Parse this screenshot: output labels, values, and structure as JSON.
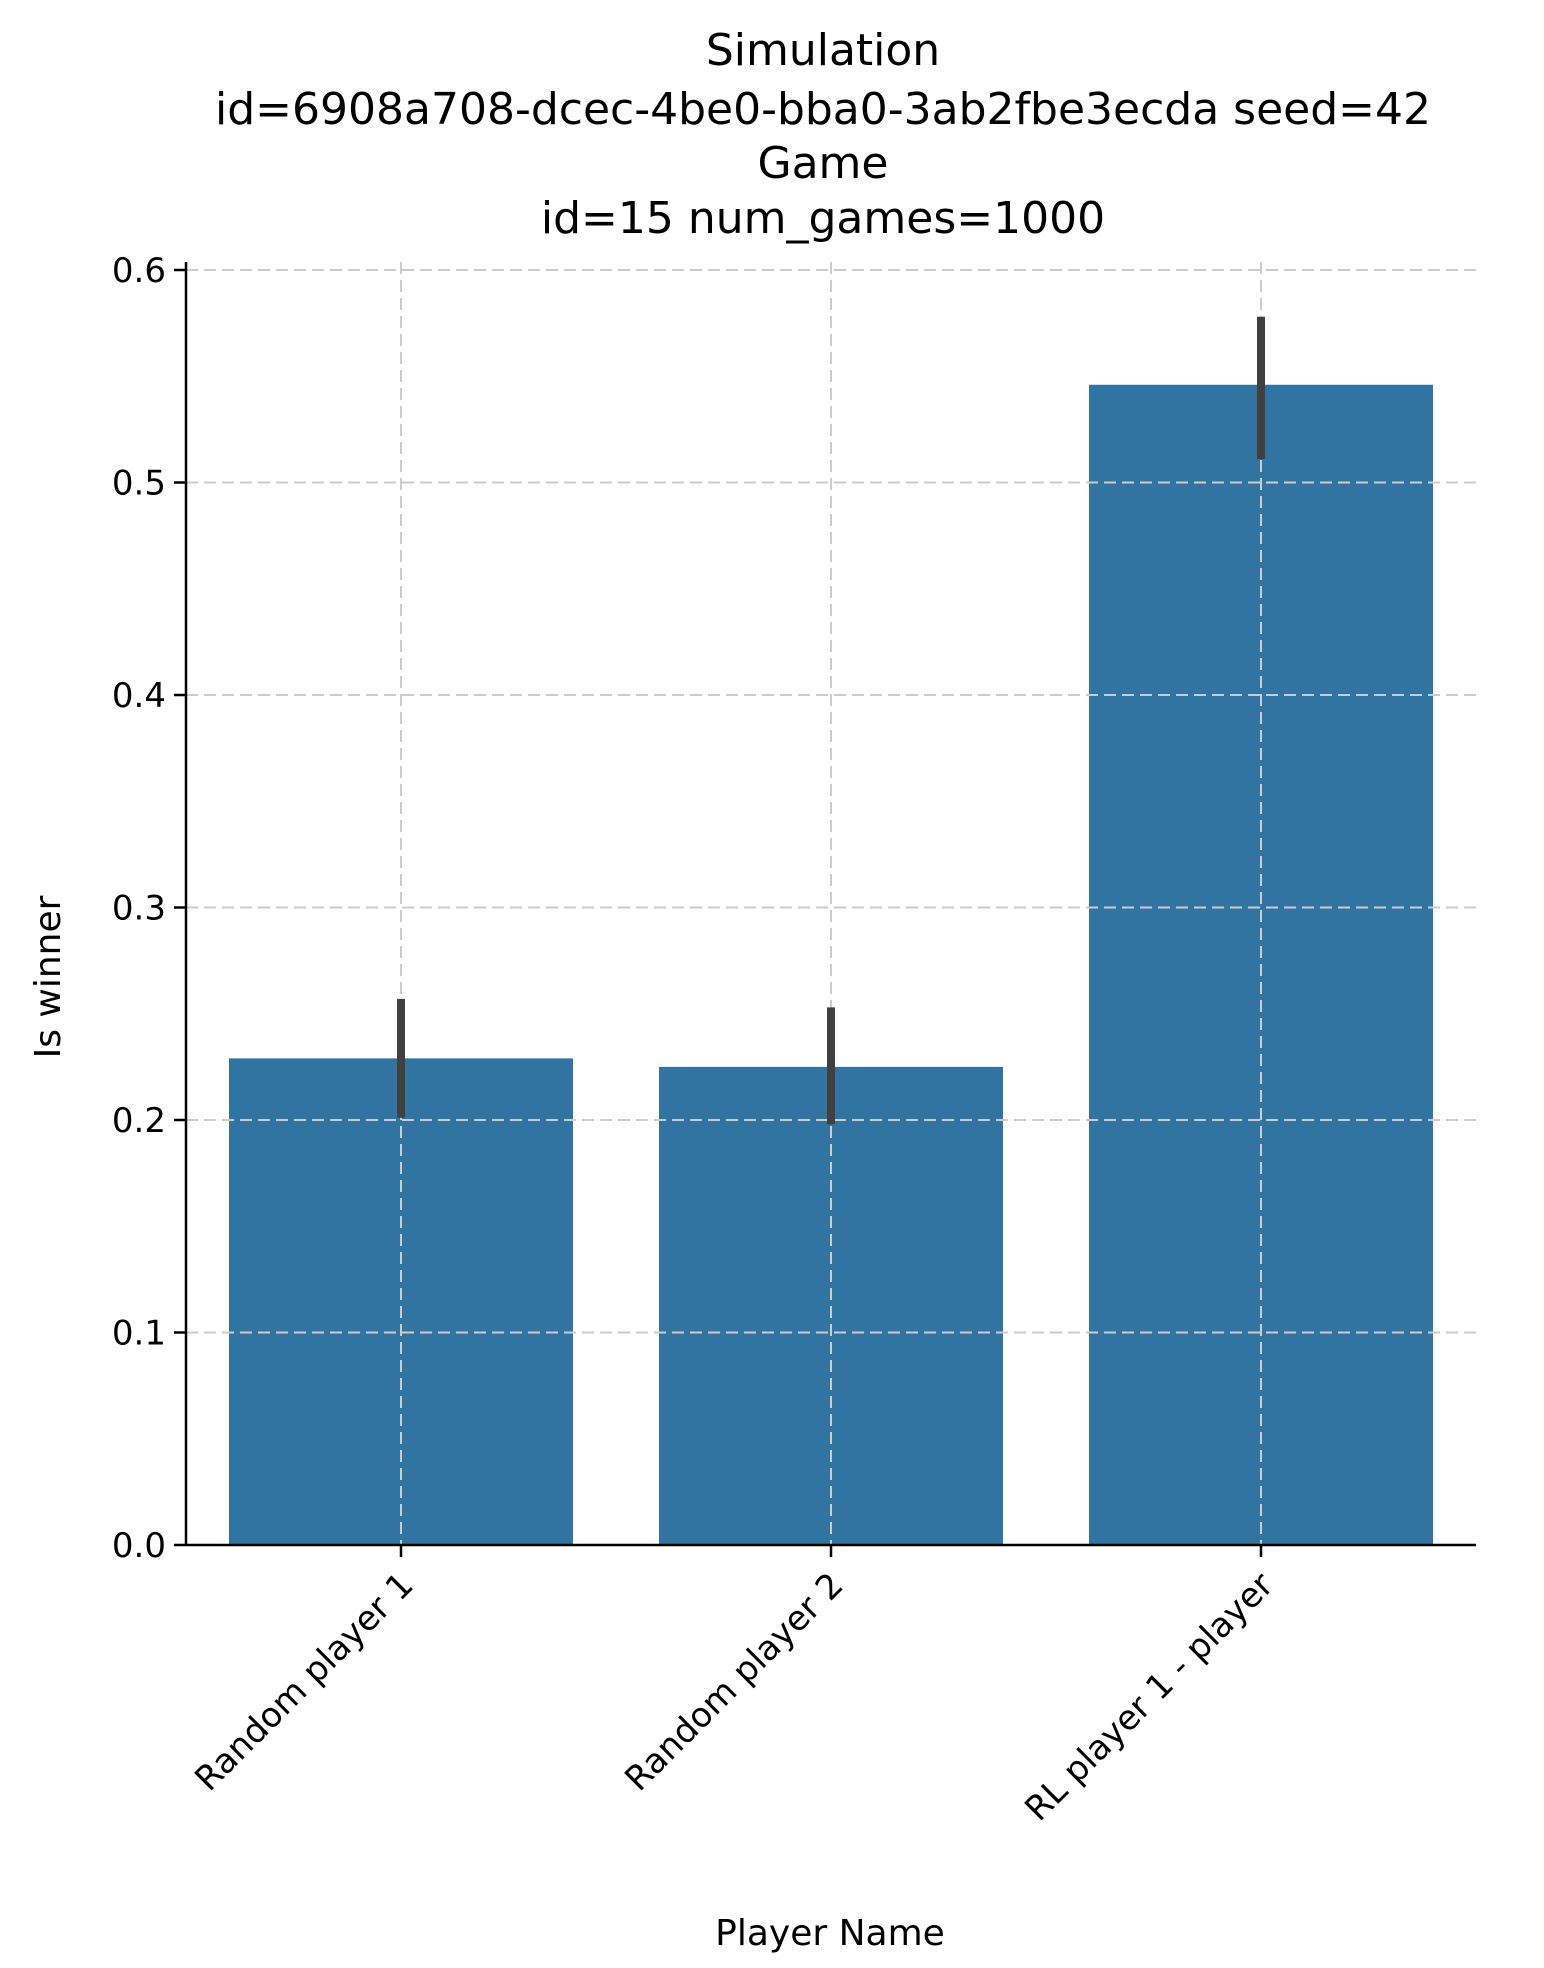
{
  "chart_data": {
    "type": "bar",
    "title_lines": [
      "Simulation",
      "id=6908a708-dcec-4be0-bba0-3ab2fbe3ecda seed=42",
      "Game",
      "id=15 num_games=1000"
    ],
    "xlabel": "Player Name",
    "ylabel": "Is winner",
    "categories": [
      "Random player 1",
      "Random player 2",
      "RL player 1 - player"
    ],
    "values": [
      0.229,
      0.225,
      0.546
    ],
    "error_low": [
      0.201,
      0.198,
      0.511
    ],
    "error_high": [
      0.257,
      0.253,
      0.578
    ],
    "ylim": [
      0,
      0.6
    ],
    "yticks": [
      "0.0",
      "0.1",
      "0.2",
      "0.3",
      "0.4",
      "0.5",
      "0.6"
    ],
    "ytick_values": [
      0,
      0.1,
      0.2,
      0.3,
      0.4,
      0.5,
      0.6
    ],
    "grid": true,
    "colors": {
      "bar": "#3274a1",
      "error": "#404040",
      "grid": "#cccccc"
    }
  }
}
